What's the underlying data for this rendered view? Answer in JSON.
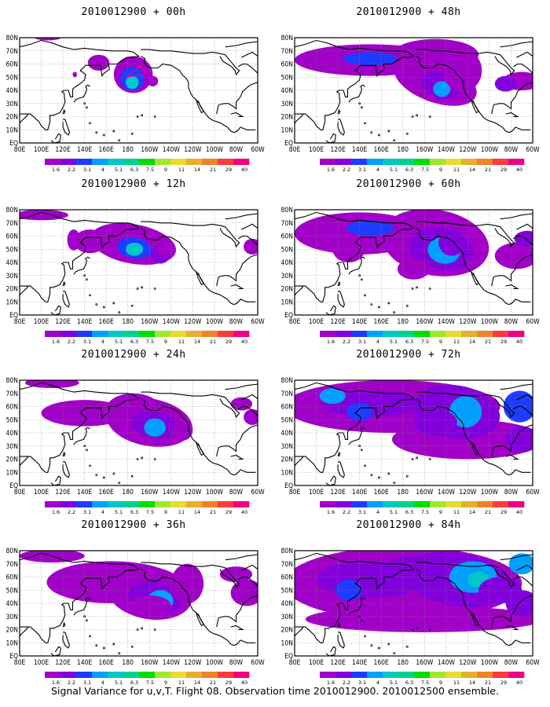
{
  "figure": {
    "caption": "Signal Variance for u,v,T. Flight 08. Observation time 2010012900. 2010012500 ensemble.",
    "lat_labels": [
      "80N",
      "70N",
      "60N",
      "50N",
      "40N",
      "30N",
      "20N",
      "10N",
      "EQ"
    ],
    "lon_labels": [
      "80E",
      "100E",
      "120E",
      "140E",
      "160E",
      "180",
      "160W",
      "140W",
      "120W",
      "100W",
      "80W",
      "60W"
    ],
    "colorbar": {
      "levels": [
        "1.6",
        "2.2",
        "3.1",
        "4",
        "5.1",
        "6.3",
        "7.5",
        "9",
        "11",
        "14",
        "21",
        "29",
        "40"
      ],
      "colors": [
        "#a000c8",
        "#8200dc",
        "#1e3cff",
        "#00a0ff",
        "#00c8c8",
        "#00d28c",
        "#00dc00",
        "#a0e632",
        "#e6dc32",
        "#e6af2d",
        "#f08228",
        "#fa3c3c",
        "#f00082"
      ]
    },
    "panels": [
      {
        "title": "2010012900 + 00h",
        "lead_hours": 0
      },
      {
        "title": "2010012900 + 48h",
        "lead_hours": 48
      },
      {
        "title": "2010012900 + 12h",
        "lead_hours": 12
      },
      {
        "title": "2010012900 + 60h",
        "lead_hours": 60
      },
      {
        "title": "2010012900 + 24h",
        "lead_hours": 24
      },
      {
        "title": "2010012900 + 72h",
        "lead_hours": 72
      },
      {
        "title": "2010012900 + 36h",
        "lead_hours": 36
      },
      {
        "title": "2010012900 + 84h",
        "lead_hours": 84
      }
    ]
  }
}
